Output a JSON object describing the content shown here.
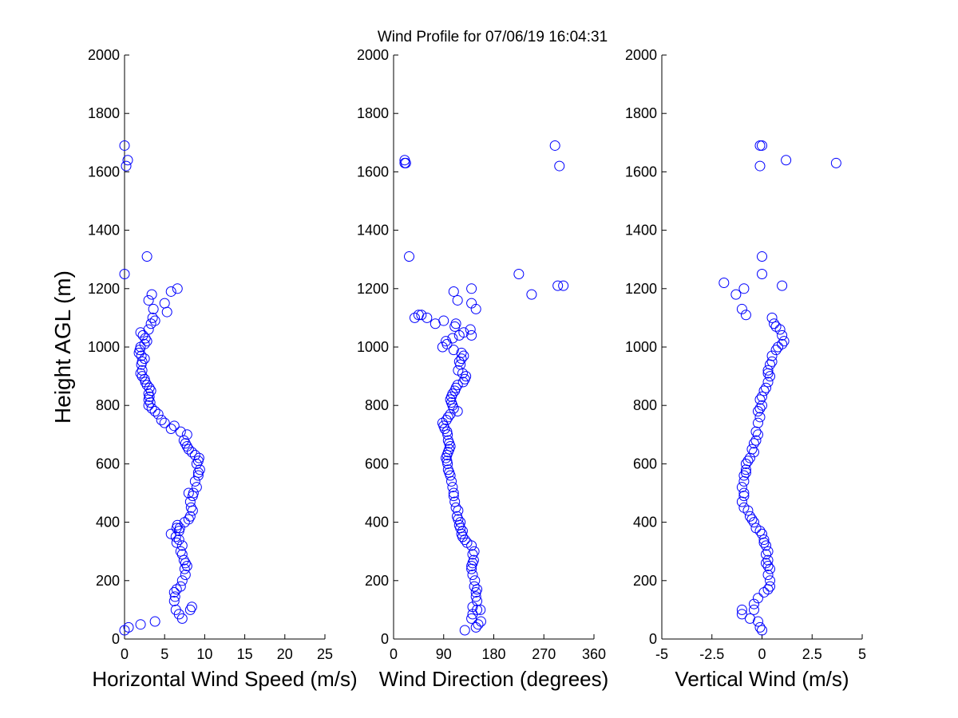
{
  "figure": {
    "title": "Wind Profile for  07/06/19 16:04:31",
    "ylabel": "Height AGL (m)",
    "marker_color": "#0000ff"
  },
  "chart_data": [
    {
      "type": "scatter",
      "xlabel": "Horizontal Wind Speed (m/s)",
      "ylabel": "Height AGL (m)",
      "xlim": [
        0,
        25
      ],
      "ylim": [
        0,
        2000
      ],
      "xticks": [
        0,
        5,
        10,
        15,
        20,
        25
      ],
      "xtick_labels": [
        "0",
        "5",
        "10",
        "15",
        "20",
        "25"
      ],
      "yticks": [
        0,
        200,
        400,
        600,
        800,
        1000,
        1200,
        1400,
        1600,
        1800,
        2000
      ],
      "grid": false,
      "x": [
        0.0,
        0.5,
        2.0,
        3.8,
        7.2,
        6.8,
        8.2,
        6.4,
        8.4,
        6.2,
        6.3,
        6.2,
        6.5,
        7.0,
        7.2,
        7.6,
        7.5,
        7.8,
        7.6,
        7.4,
        7.2,
        7.0,
        7.2,
        6.5,
        6.8,
        6.4,
        5.8,
        6.8,
        6.5,
        6.9,
        6.6,
        7.5,
        8.0,
        8.2,
        8.5,
        8.3,
        8.2,
        8.5,
        8.6,
        8.0,
        9.0,
        8.8,
        9.2,
        9.2,
        9.4,
        9.0,
        9.2,
        9.3,
        8.8,
        8.4,
        8.0,
        7.8,
        7.6,
        7.4,
        7.8,
        7.0,
        5.8,
        6.2,
        5.0,
        4.6,
        4.2,
        3.8,
        3.4,
        3.0,
        3.2,
        3.0,
        3.1,
        3.0,
        3.3,
        3.1,
        2.8,
        2.6,
        2.5,
        2.2,
        2.0,
        2.2,
        2.1,
        2.2,
        2.5,
        2.1,
        1.8,
        1.9,
        2.0,
        2.5,
        2.8,
        2.6,
        2.3,
        2.0,
        3.0,
        3.3,
        3.8,
        3.5,
        5.3,
        3.6,
        5.0,
        3.0,
        3.4,
        5.8,
        6.6,
        0.0,
        2.8,
        0.2,
        0.4,
        0.0
      ],
      "y": [
        30,
        40,
        50,
        60,
        70,
        85,
        100,
        100,
        110,
        130,
        145,
        160,
        170,
        180,
        200,
        220,
        240,
        250,
        260,
        270,
        290,
        300,
        320,
        330,
        340,
        350,
        360,
        370,
        380,
        380,
        390,
        400,
        410,
        420,
        440,
        450,
        470,
        490,
        500,
        500,
        520,
        540,
        560,
        570,
        580,
        600,
        610,
        620,
        630,
        640,
        650,
        660,
        670,
        680,
        700,
        710,
        720,
        730,
        740,
        750,
        770,
        780,
        790,
        800,
        810,
        820,
        830,
        840,
        850,
        860,
        870,
        880,
        890,
        900,
        910,
        920,
        940,
        950,
        960,
        970,
        980,
        990,
        1000,
        1010,
        1020,
        1030,
        1040,
        1050,
        1060,
        1080,
        1090,
        1100,
        1120,
        1130,
        1150,
        1160,
        1180,
        1190,
        1200,
        1250,
        1310,
        1620,
        1640,
        1690
      ]
    },
    {
      "type": "scatter",
      "xlabel": "Wind Direction (degrees)",
      "xlim": [
        0,
        360
      ],
      "ylim": [
        0,
        2000
      ],
      "xticks": [
        0,
        90,
        180,
        270,
        360
      ],
      "xtick_labels": [
        "0",
        "90",
        "180",
        "270",
        "360"
      ],
      "yticks": [
        0,
        200,
        400,
        600,
        800,
        1000,
        1200,
        1400,
        1600,
        1800,
        2000
      ],
      "grid": false,
      "x": [
        128,
        148,
        152,
        157,
        140,
        142,
        156,
        150,
        142,
        150,
        148,
        148,
        150,
        145,
        146,
        142,
        140,
        140,
        142,
        144,
        142,
        145,
        140,
        132,
        128,
        124,
        122,
        124,
        120,
        118,
        120,
        116,
        114,
        116,
        112,
        110,
        108,
        108,
        106,
        104,
        102,
        100,
        98,
        97,
        96,
        94,
        96,
        98,
        100,
        102,
        100,
        98,
        97,
        96,
        92,
        90,
        88,
        95,
        98,
        102,
        115,
        108,
        106,
        104,
        102,
        104,
        106,
        110,
        112,
        115,
        125,
        128,
        130,
        124,
        116,
        120,
        118,
        122,
        126,
        122,
        108,
        88,
        96,
        94,
        106,
        118,
        126,
        138,
        110,
        112,
        90,
        60,
        45,
        38,
        50,
        75,
        140,
        148,
        140,
        115,
        28,
        108,
        140,
        248,
        295,
        20,
        225,
        20,
        305,
        22,
        298,
        290
      ],
      "y": [
        30,
        40,
        50,
        60,
        70,
        85,
        100,
        100,
        110,
        130,
        145,
        160,
        170,
        180,
        200,
        220,
        240,
        250,
        260,
        270,
        290,
        300,
        320,
        330,
        340,
        350,
        360,
        370,
        380,
        390,
        400,
        410,
        420,
        440,
        450,
        470,
        490,
        500,
        520,
        540,
        560,
        570,
        580,
        600,
        610,
        620,
        630,
        640,
        650,
        660,
        670,
        680,
        700,
        710,
        720,
        730,
        740,
        750,
        760,
        770,
        780,
        790,
        800,
        810,
        820,
        830,
        840,
        850,
        860,
        870,
        880,
        890,
        900,
        910,
        920,
        940,
        950,
        960,
        970,
        980,
        990,
        1000,
        1010,
        1020,
        1030,
        1040,
        1050,
        1060,
        1070,
        1080,
        1090,
        1100,
        1110,
        1100,
        1110,
        1080,
        1040,
        1130,
        1150,
        1160,
        1310,
        1190,
        1200,
        1180,
        1210,
        1640,
        1250,
        1630,
        1210,
        1630,
        1620,
        1690
      ]
    },
    {
      "type": "scatter",
      "xlabel": "Vertical Wind (m/s)",
      "xlim": [
        -5,
        5
      ],
      "ylim": [
        0,
        2000
      ],
      "xticks": [
        -5,
        -2.5,
        0,
        2.5,
        5
      ],
      "xtick_labels": [
        "-5",
        "-2.5",
        "0",
        "2.5",
        "5"
      ],
      "yticks": [
        0,
        200,
        400,
        600,
        800,
        1000,
        1200,
        1400,
        1600,
        1800,
        2000
      ],
      "grid": false,
      "x": [
        0.0,
        -0.1,
        -0.2,
        -0.6,
        -1.0,
        -1.0,
        -0.4,
        -0.4,
        -0.2,
        0.1,
        0.3,
        0.4,
        0.4,
        0.3,
        0.4,
        0.3,
        0.2,
        0.3,
        0.2,
        0.3,
        0.2,
        0.1,
        0.1,
        0.0,
        -0.1,
        -0.3,
        -0.4,
        -0.5,
        -0.6,
        -0.7,
        -0.9,
        -1.0,
        -0.9,
        -0.9,
        -1.0,
        -0.9,
        -0.9,
        -0.8,
        -0.8,
        -0.8,
        -0.7,
        -0.6,
        -0.4,
        -0.5,
        -0.4,
        -0.3,
        -0.2,
        -0.3,
        -0.2,
        -0.1,
        -0.2,
        -0.1,
        0.0,
        -0.1,
        0.0,
        0.1,
        0.2,
        0.3,
        0.4,
        0.3,
        0.3,
        0.4,
        0.5,
        0.5,
        0.7,
        0.8,
        1.0,
        1.1,
        1.0,
        0.9,
        0.7,
        0.6,
        0.5,
        -1.0,
        -0.8,
        -1.3,
        -0.9,
        -1.9,
        1.0,
        0.0,
        0.0,
        -0.1,
        -0.1,
        3.7,
        1.2,
        0.0
      ],
      "y": [
        30,
        40,
        60,
        70,
        85,
        100,
        100,
        120,
        140,
        160,
        170,
        180,
        200,
        220,
        240,
        250,
        260,
        270,
        290,
        300,
        320,
        330,
        340,
        360,
        370,
        380,
        400,
        410,
        420,
        440,
        450,
        470,
        490,
        500,
        520,
        540,
        560,
        570,
        580,
        600,
        610,
        620,
        640,
        650,
        670,
        680,
        700,
        710,
        740,
        760,
        780,
        790,
        800,
        820,
        830,
        850,
        860,
        880,
        900,
        910,
        920,
        940,
        950,
        970,
        990,
        1000,
        1010,
        1020,
        1040,
        1060,
        1070,
        1080,
        1100,
        1130,
        1110,
        1180,
        1200,
        1220,
        1210,
        1250,
        1310,
        1620,
        1690,
        1630,
        1640,
        1690
      ]
    }
  ]
}
